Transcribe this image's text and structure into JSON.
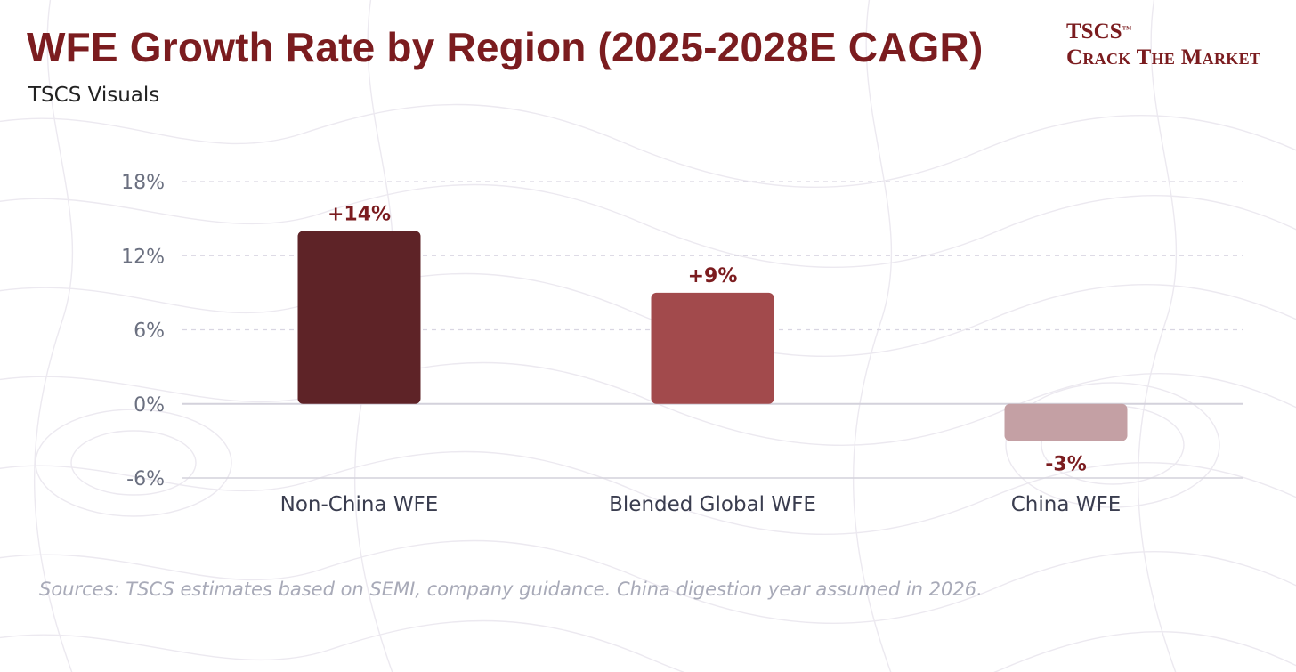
{
  "header": {
    "title": "WFE Growth Rate by Region (2025-2028E CAGR)",
    "subtitle": "TSCS Visuals"
  },
  "brand": {
    "name": "TSCS",
    "trademark": "™",
    "tagline": "Crack The Market"
  },
  "footer": {
    "source": "Sources: TSCS estimates based on SEMI, company guidance. China digestion year assumed in 2026."
  },
  "colors": {
    "title": "#7b1c1f",
    "label": "#7b1c1f",
    "axis_text": "#6b7080",
    "category_text": "#3a3d4f",
    "grid": "#d9d6e2",
    "zero_line": "#d4d2dc"
  },
  "chart_data": {
    "type": "bar",
    "title": "WFE Growth Rate by Region (2025-2028E CAGR)",
    "xlabel": "",
    "ylabel": "",
    "categories": [
      "Non-China WFE",
      "Blended Global WFE",
      "China WFE"
    ],
    "values": [
      14,
      9,
      -3
    ],
    "value_labels": [
      "+14%",
      "+9%",
      "-3%"
    ],
    "bar_colors": [
      "#5e2327",
      "#a24a4c",
      "#c4a0a4"
    ],
    "ylim": [
      -6,
      18
    ],
    "yticks": [
      18,
      12,
      6,
      0,
      -6
    ],
    "ytick_labels": [
      "18%",
      "12%",
      "6%",
      "0%",
      "-6%"
    ],
    "grid": true,
    "legend": "none"
  }
}
